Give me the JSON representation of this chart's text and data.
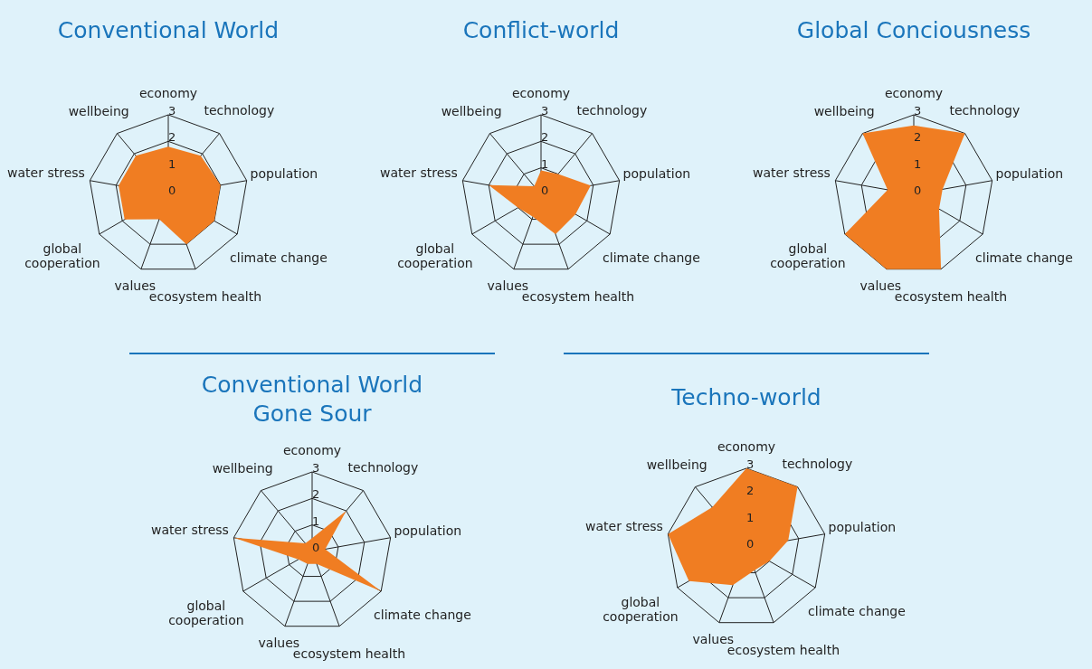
{
  "chart_data": [
    {
      "type": "radar",
      "title": "Conventional World",
      "categories": [
        "economy",
        "technology",
        "population",
        "climate change",
        "ecosystem health",
        "values",
        "global cooperation",
        "water stress",
        "wellbeing"
      ],
      "series": [
        {
          "color": "#f07d22",
          "values": [
            1.8,
            1.9,
            2.0,
            2.0,
            2.0,
            1.0,
            1.9,
            1.9,
            1.9
          ]
        }
      ],
      "ylim": [
        0,
        3
      ],
      "yticks": [
        0,
        1,
        2,
        3
      ],
      "grid": true
    },
    {
      "type": "radar",
      "title": "Conflict-world",
      "categories": [
        "economy",
        "technology",
        "population",
        "climate change",
        "ecosystem health",
        "values",
        "global cooperation",
        "water stress",
        "wellbeing"
      ],
      "series": [
        {
          "color": "#f07d22",
          "values": [
            0.9,
            1.0,
            1.9,
            1.5,
            1.6,
            0.9,
            1.0,
            2.0,
            0.4
          ]
        }
      ],
      "ylim": [
        0,
        3
      ],
      "yticks": [
        0,
        1,
        2,
        3
      ],
      "grid": true
    },
    {
      "type": "radar",
      "title": "Global Conciousness",
      "categories": [
        "economy",
        "technology",
        "population",
        "climate change",
        "ecosystem health",
        "values",
        "global cooperation",
        "water stress",
        "wellbeing"
      ],
      "series": [
        {
          "color": "#f07d22",
          "values": [
            2.6,
            3.0,
            1.1,
            1.1,
            3.0,
            3.0,
            3.0,
            1.0,
            3.0
          ]
        }
      ],
      "ylim": [
        0,
        3
      ],
      "yticks": [
        0,
        1,
        2,
        3
      ],
      "grid": true
    },
    {
      "type": "radar",
      "title": "Conventional World\nGone Sour",
      "categories": [
        "economy",
        "technology",
        "population",
        "climate change",
        "ecosystem health",
        "values",
        "global cooperation",
        "water stress",
        "wellbeing"
      ],
      "series": [
        {
          "color": "#f07d22",
          "values": [
            0.5,
            2.0,
            0.5,
            3.0,
            0.5,
            0.5,
            0.6,
            3.0,
            0.4
          ]
        }
      ],
      "ylim": [
        0,
        3
      ],
      "yticks": [
        0,
        1,
        2,
        3
      ],
      "grid": true
    },
    {
      "type": "radar",
      "title": "Techno-world",
      "categories": [
        "economy",
        "technology",
        "population",
        "climate change",
        "ecosystem health",
        "values",
        "global cooperation",
        "water stress",
        "wellbeing"
      ],
      "series": [
        {
          "color": "#f07d22",
          "values": [
            3.0,
            3.0,
            1.6,
            1.0,
            0.9,
            1.5,
            2.5,
            3.0,
            2.0
          ]
        }
      ],
      "ylim": [
        0,
        3
      ],
      "yticks": [
        0,
        1,
        2,
        3
      ],
      "grid": true
    }
  ]
}
